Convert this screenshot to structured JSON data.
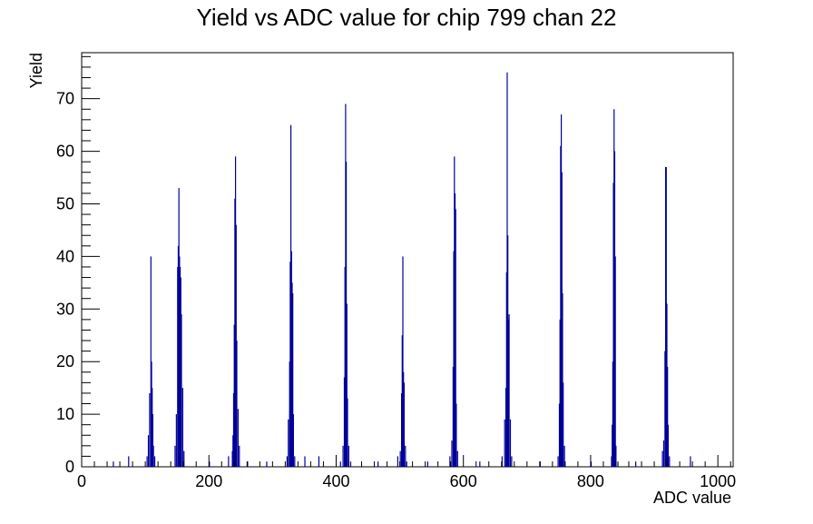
{
  "chart_data": {
    "type": "bar",
    "title": "Yield vs ADC value for chip 799 chan 22",
    "xlabel": "ADC value",
    "ylabel": "Yield",
    "xlim": [
      0,
      1024
    ],
    "ylim": [
      0,
      78.75
    ],
    "xticks": [
      0,
      200,
      400,
      600,
      800,
      1000
    ],
    "yticks": [
      0,
      10,
      20,
      30,
      40,
      50,
      60,
      70
    ],
    "grid": false,
    "legend": "none",
    "color": "#000099",
    "bins": [
      {
        "x": 49,
        "y": 1
      },
      {
        "x": 73,
        "y": 2
      },
      {
        "x": 102,
        "y": 2
      },
      {
        "x": 104,
        "y": 6
      },
      {
        "x": 106,
        "y": 14
      },
      {
        "x": 108,
        "y": 40
      },
      {
        "x": 109,
        "y": 20
      },
      {
        "x": 110,
        "y": 15
      },
      {
        "x": 111,
        "y": 10
      },
      {
        "x": 112,
        "y": 4
      },
      {
        "x": 114,
        "y": 2
      },
      {
        "x": 146,
        "y": 4
      },
      {
        "x": 148,
        "y": 10
      },
      {
        "x": 150,
        "y": 38
      },
      {
        "x": 151,
        "y": 42
      },
      {
        "x": 152,
        "y": 53
      },
      {
        "x": 153,
        "y": 40
      },
      {
        "x": 154,
        "y": 38
      },
      {
        "x": 155,
        "y": 36
      },
      {
        "x": 156,
        "y": 29
      },
      {
        "x": 158,
        "y": 15
      },
      {
        "x": 160,
        "y": 3
      },
      {
        "x": 200,
        "y": 1
      },
      {
        "x": 230,
        "y": 2
      },
      {
        "x": 236,
        "y": 3
      },
      {
        "x": 237,
        "y": 6
      },
      {
        "x": 238,
        "y": 14
      },
      {
        "x": 239,
        "y": 27
      },
      {
        "x": 240,
        "y": 51
      },
      {
        "x": 241,
        "y": 59
      },
      {
        "x": 242,
        "y": 46
      },
      {
        "x": 243,
        "y": 24
      },
      {
        "x": 245,
        "y": 11
      },
      {
        "x": 247,
        "y": 4
      },
      {
        "x": 260,
        "y": 1
      },
      {
        "x": 290,
        "y": 1
      },
      {
        "x": 322,
        "y": 2
      },
      {
        "x": 324,
        "y": 9
      },
      {
        "x": 326,
        "y": 20
      },
      {
        "x": 327,
        "y": 39
      },
      {
        "x": 328,
        "y": 65
      },
      {
        "x": 329,
        "y": 41
      },
      {
        "x": 330,
        "y": 35
      },
      {
        "x": 331,
        "y": 33
      },
      {
        "x": 332,
        "y": 10
      },
      {
        "x": 334,
        "y": 2
      },
      {
        "x": 350,
        "y": 2
      },
      {
        "x": 372,
        "y": 2
      },
      {
        "x": 406,
        "y": 1
      },
      {
        "x": 410,
        "y": 4
      },
      {
        "x": 412,
        "y": 17
      },
      {
        "x": 413,
        "y": 38
      },
      {
        "x": 414,
        "y": 69
      },
      {
        "x": 415,
        "y": 58
      },
      {
        "x": 416,
        "y": 31
      },
      {
        "x": 417,
        "y": 13
      },
      {
        "x": 419,
        "y": 4
      },
      {
        "x": 422,
        "y": 1
      },
      {
        "x": 465,
        "y": 1
      },
      {
        "x": 496,
        "y": 2
      },
      {
        "x": 500,
        "y": 3
      },
      {
        "x": 502,
        "y": 14
      },
      {
        "x": 503,
        "y": 25
      },
      {
        "x": 504,
        "y": 40
      },
      {
        "x": 505,
        "y": 18
      },
      {
        "x": 506,
        "y": 16
      },
      {
        "x": 508,
        "y": 4
      },
      {
        "x": 510,
        "y": 1
      },
      {
        "x": 543,
        "y": 1
      },
      {
        "x": 578,
        "y": 2
      },
      {
        "x": 581,
        "y": 5
      },
      {
        "x": 583,
        "y": 19
      },
      {
        "x": 584,
        "y": 41
      },
      {
        "x": 585,
        "y": 59
      },
      {
        "x": 586,
        "y": 52
      },
      {
        "x": 587,
        "y": 49
      },
      {
        "x": 588,
        "y": 12
      },
      {
        "x": 590,
        "y": 3
      },
      {
        "x": 625,
        "y": 1
      },
      {
        "x": 660,
        "y": 2
      },
      {
        "x": 664,
        "y": 9
      },
      {
        "x": 666,
        "y": 15
      },
      {
        "x": 667,
        "y": 37
      },
      {
        "x": 668,
        "y": 75
      },
      {
        "x": 669,
        "y": 44
      },
      {
        "x": 670,
        "y": 28
      },
      {
        "x": 671,
        "y": 29
      },
      {
        "x": 673,
        "y": 9
      },
      {
        "x": 675,
        "y": 2
      },
      {
        "x": 720,
        "y": 1
      },
      {
        "x": 748,
        "y": 2
      },
      {
        "x": 750,
        "y": 12
      },
      {
        "x": 751,
        "y": 28
      },
      {
        "x": 752,
        "y": 61
      },
      {
        "x": 753,
        "y": 67
      },
      {
        "x": 754,
        "y": 56
      },
      {
        "x": 755,
        "y": 33
      },
      {
        "x": 756,
        "y": 16
      },
      {
        "x": 758,
        "y": 4
      },
      {
        "x": 800,
        "y": 1
      },
      {
        "x": 832,
        "y": 2
      },
      {
        "x": 833,
        "y": 8
      },
      {
        "x": 834,
        "y": 20
      },
      {
        "x": 835,
        "y": 54
      },
      {
        "x": 836,
        "y": 68
      },
      {
        "x": 837,
        "y": 60
      },
      {
        "x": 838,
        "y": 40
      },
      {
        "x": 839,
        "y": 4
      },
      {
        "x": 842,
        "y": 1
      },
      {
        "x": 870,
        "y": 1
      },
      {
        "x": 912,
        "y": 3
      },
      {
        "x": 914,
        "y": 5
      },
      {
        "x": 916,
        "y": 22
      },
      {
        "x": 917,
        "y": 57
      },
      {
        "x": 918,
        "y": 57
      },
      {
        "x": 919,
        "y": 31
      },
      {
        "x": 920,
        "y": 19
      },
      {
        "x": 921,
        "y": 8
      },
      {
        "x": 923,
        "y": 2
      },
      {
        "x": 956,
        "y": 2
      }
    ]
  }
}
